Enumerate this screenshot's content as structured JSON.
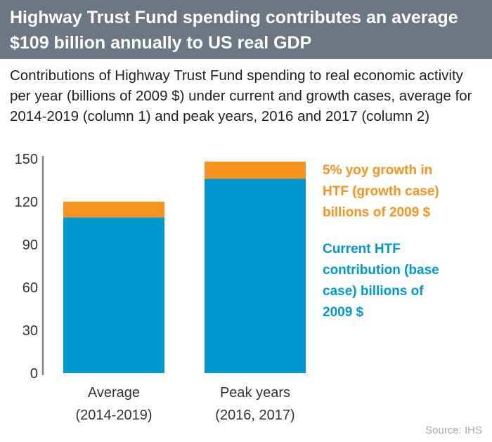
{
  "header": {
    "title": "Highway Trust Fund spending contributes an average $109 billion annually to US real GDP"
  },
  "subtitle": "Contributions of Highway Trust Fund spending to real economic activity per year (billions of 2009 $) under current and growth cases, average for 2014-2019 (column 1) and peak years, 2016 and 2017 (column 2)",
  "source": "Source: IHS",
  "chart_data": {
    "type": "bar",
    "stacked": true,
    "categories": [
      [
        "Average",
        "(2014-2019)"
      ],
      [
        "Peak years",
        "(2016, 2017)"
      ]
    ],
    "series": [
      {
        "name": "Current HTF contribution (base case) billions of 2009 $",
        "values": [
          109,
          136
        ],
        "color": "#0098d1"
      },
      {
        "name": "5% yoy growth in HTF (growth case) billions of 2009 $",
        "values": [
          11,
          12
        ],
        "color": "#f7931e"
      }
    ],
    "legend_lines": [
      [
        "5% yoy growth in",
        "HTF (growth case)",
        "billions of 2009 $"
      ],
      [
        "Current HTF",
        "contribution (base",
        "case) billions of",
        "2009 $"
      ]
    ],
    "yticks": [
      0,
      30,
      60,
      90,
      120,
      150
    ],
    "ylim": [
      0,
      150
    ],
    "legend_placement": "right",
    "grid": false
  }
}
